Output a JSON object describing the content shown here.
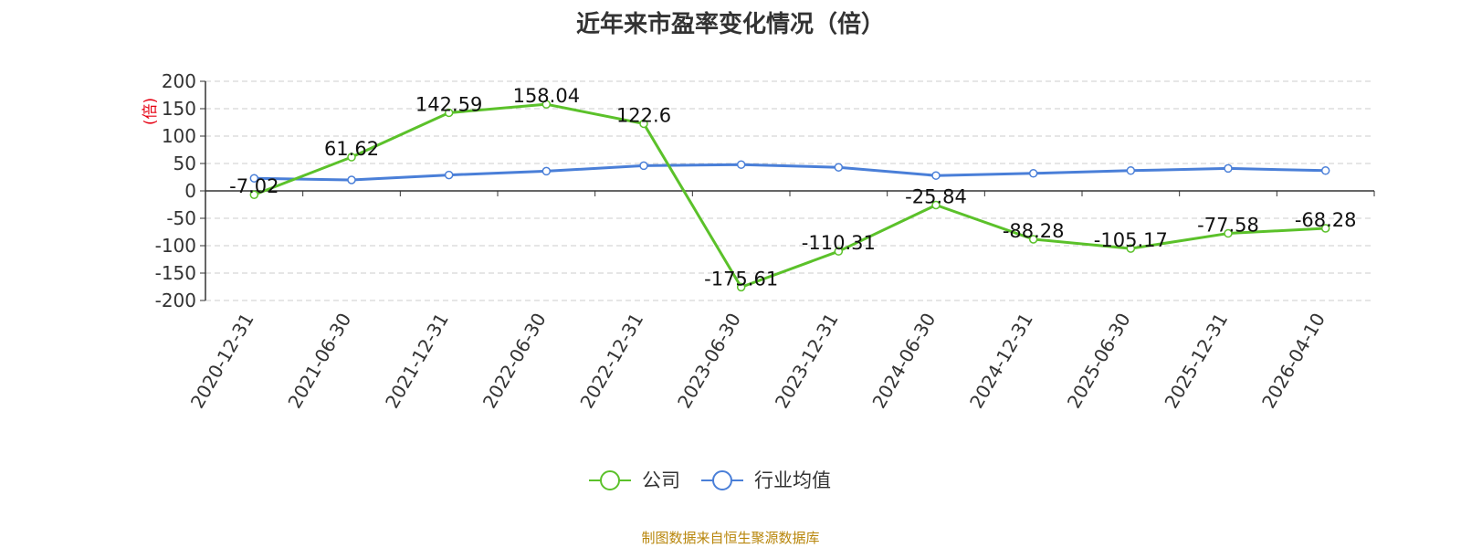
{
  "chart_data": {
    "type": "line",
    "title": "近年来市盈率变化情况（倍）",
    "ylabel": "(倍)",
    "xlabel": "",
    "categories": [
      "2020-12-31",
      "2021-06-30",
      "2021-12-31",
      "2022-06-30",
      "2022-12-31",
      "2023-06-30",
      "2023-12-31",
      "2024-06-30",
      "2024-12-31",
      "2025-06-30",
      "2025-12-31",
      "2026-04-10"
    ],
    "ylim": [
      -200,
      200
    ],
    "yticks": [
      200,
      150,
      100,
      50,
      0,
      -50,
      -100,
      -150,
      -200
    ],
    "grid": true,
    "legend_position": "bottom-center",
    "series": [
      {
        "name": "公司",
        "color": "#5bc12a",
        "values": [
          -7.02,
          61.62,
          142.59,
          158.04,
          122.6,
          -175.61,
          -110.31,
          -25.84,
          -88.28,
          -105.17,
          -77.58,
          -68.28
        ],
        "labels": [
          "-7.02",
          "61.62",
          "142.59",
          "158.04",
          "122.6",
          "-175.61",
          "-110.31",
          "-25.84",
          "-88.28",
          "-105.17",
          "-77.58",
          "-68.28"
        ]
      },
      {
        "name": "行业均值",
        "color": "#4a7fd8",
        "values": [
          23,
          20,
          29,
          36,
          46,
          48,
          43,
          28,
          32,
          37,
          41,
          37
        ]
      }
    ],
    "ylabel_color": "#e60012"
  },
  "footer": {
    "source": "制图数据来自恒生聚源数据库",
    "color": "#b8860b"
  }
}
